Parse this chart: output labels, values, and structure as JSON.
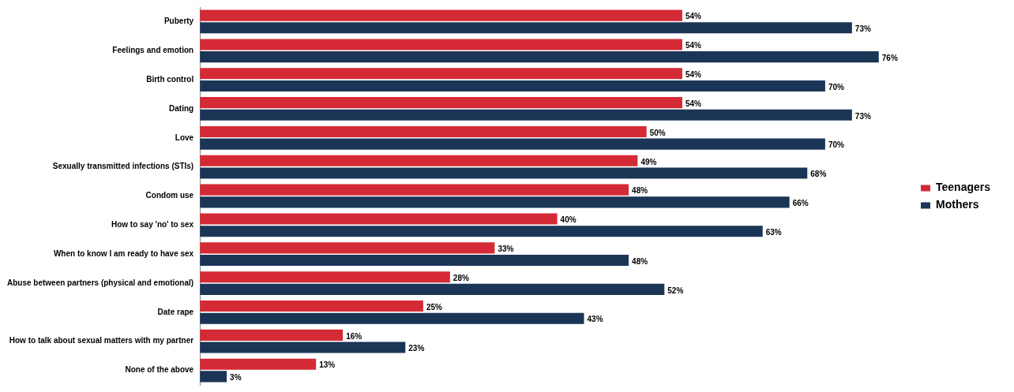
{
  "chart_data": {
    "type": "bar",
    "orientation": "horizontal",
    "categories": [
      "Puberty",
      "Feelings and emotion",
      "Birth control",
      "Dating",
      "Love",
      "Sexually transmitted infections (STIs)",
      "Condom use",
      "How to say 'no' to sex",
      "When to know I am ready to have sex",
      "Abuse between partners (physical and emotional)",
      "Date rape",
      "How to talk about sexual matters with my partner",
      "None of the above"
    ],
    "series": [
      {
        "name": "Teenagers",
        "color": "#d42a35",
        "values": [
          54,
          54,
          54,
          54,
          50,
          49,
          48,
          40,
          33,
          28,
          25,
          16,
          13
        ],
        "value_labels": [
          "54%",
          "54%",
          "54%",
          "54%",
          "50%",
          "49%",
          "48%",
          "40%",
          "33%",
          "28%",
          "25%",
          "16%",
          "13%"
        ]
      },
      {
        "name": "Mothers",
        "color": "#1b3556",
        "values": [
          73,
          76,
          70,
          73,
          70,
          68,
          66,
          63,
          48,
          52,
          43,
          23,
          3
        ],
        "value_labels": [
          "73%",
          "76%",
          "70%",
          "73%",
          "70%",
          "68%",
          "66%",
          "63%",
          "48%",
          "52%",
          "43%",
          "23%",
          "3%"
        ]
      }
    ],
    "tick_labels": "y",
    "legend": "right"
  }
}
